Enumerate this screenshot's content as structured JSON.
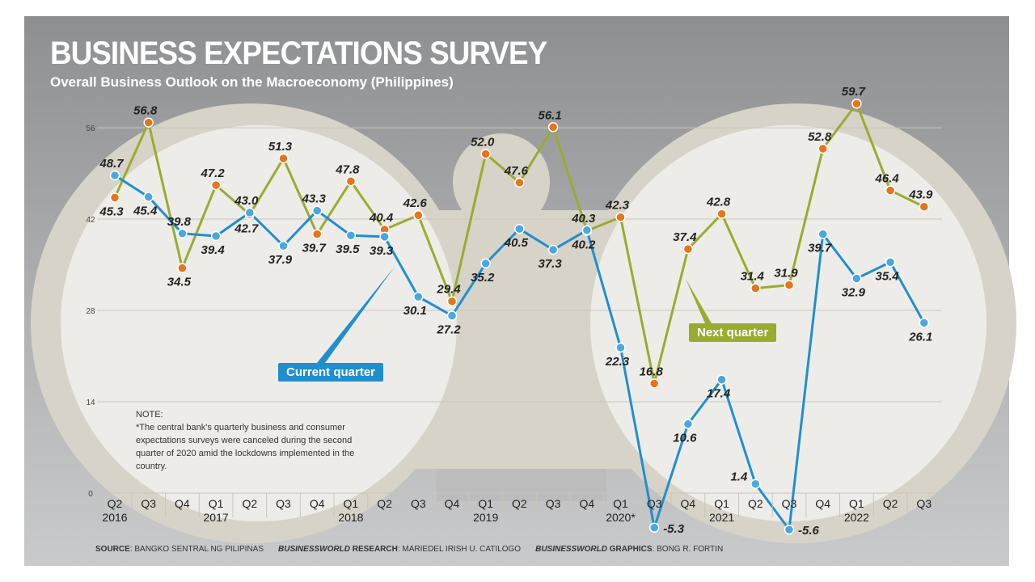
{
  "title": "BUSINESS EXPECTATIONS SURVEY",
  "subtitle": "Overall Business Outlook on the Macroeconomy (Philippines)",
  "note": {
    "heading": "NOTE:",
    "text": "*The central bank's quarterly business and consumer expectations surveys were canceled during the second quarter of 2020 amid the lockdowns implemented in the country."
  },
  "footer": {
    "source_label": "SOURCE",
    "source": ": BANGKO SENTRAL NG PILIPINAS",
    "research_brand": "BUSINESSWORLD",
    "research_label": " RESEARCH",
    "research": ": MARIEDEL IRISH U. CATILOGO",
    "graphics_brand": "BUSINESSWORLD",
    "graphics_label": " GRAPHICS",
    "graphics": ": BONG R. FORTIN"
  },
  "chart_data": {
    "type": "line",
    "title": "BUSINESS EXPECTATIONS SURVEY",
    "subtitle": "Overall Business Outlook on the Macroeconomy (Philippines)",
    "categories": [
      "Q2|2016",
      "Q3",
      "Q4",
      "Q1|2017",
      "Q2",
      "Q3",
      "Q4",
      "Q1|2018",
      "Q2",
      "Q3",
      "Q4",
      "Q1|2019",
      "Q2",
      "Q3",
      "Q4",
      "Q1|2020*",
      "Q3",
      "Q4",
      "Q1|2021",
      "Q2",
      "Q3",
      "Q4",
      "Q1|2022",
      "Q2",
      "Q3"
    ],
    "yticks": [
      0,
      14,
      28,
      42,
      56
    ],
    "ylim": [
      -7,
      60
    ],
    "grid": true,
    "series": [
      {
        "name": "Current quarter",
        "color": "#1f8fd0",
        "marker_color": "#4aa8e0",
        "values": [
          48.7,
          45.4,
          39.8,
          39.4,
          43.0,
          37.9,
          43.3,
          39.5,
          39.3,
          30.1,
          27.2,
          35.2,
          40.5,
          37.3,
          40.3,
          22.3,
          -5.3,
          10.6,
          17.4,
          1.4,
          -5.6,
          39.7,
          32.9,
          35.4,
          26.1
        ]
      },
      {
        "name": "Next quarter",
        "color": "#9aab2f",
        "marker_color": "#e8741e",
        "values": [
          45.3,
          56.8,
          34.5,
          47.2,
          42.7,
          51.3,
          39.7,
          47.8,
          40.4,
          42.6,
          29.4,
          52.0,
          47.6,
          56.1,
          40.2,
          42.3,
          16.8,
          37.4,
          42.8,
          31.4,
          31.9,
          52.8,
          59.7,
          46.4,
          43.9
        ]
      }
    ]
  }
}
